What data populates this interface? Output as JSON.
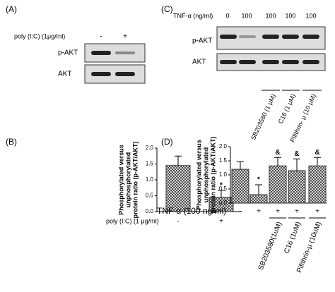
{
  "panel_a": {
    "label": "(A)",
    "treatment": "poly (I:C) (1μg/ml)",
    "lanes": [
      "-",
      "+"
    ],
    "rows": [
      "p-AKT",
      "AKT"
    ]
  },
  "panel_c": {
    "label": "(C)",
    "treatment": "TNF-α (ng/ml)",
    "lanes": [
      "0",
      "100",
      "100",
      "100",
      "100"
    ],
    "rows": [
      "p-AKT",
      "AKT"
    ],
    "inhibitors": [
      "SB203580 (1 μM)",
      "C16 (1 μM)",
      "Pifithrin- μ (10 μM)"
    ]
  },
  "chart_data": [
    {
      "type": "bar",
      "panel": "(B)",
      "ylabel": [
        "Phosphorylated versus",
        "unphosphorylated",
        "protein ratio (p-AKT/AKT)"
      ],
      "xlabel": "poly (I:C) (1 μg/ml)",
      "categories": [
        "-",
        "+"
      ],
      "values": [
        1.45,
        0.45
      ],
      "errors": [
        0.3,
        0.22
      ],
      "markers": [
        null,
        "*"
      ],
      "treatments": [],
      "ylim": [
        0,
        2
      ],
      "yticks": [
        {
          "value": 0,
          "label": "0.0"
        },
        {
          "value": 0.5,
          "label": "0.5"
        },
        {
          "value": 1,
          "label": "1.0"
        },
        {
          "value": 1.5,
          "label": "1.5"
        },
        {
          "value": 2,
          "label": "2.0"
        }
      ],
      "color": "#333333"
    },
    {
      "type": "bar",
      "panel": "(D)",
      "ylabel": [
        "Phosphorylated versus",
        "unphosphorylated",
        "protein ratio (p-AKT/AKT)"
      ],
      "xlabel": "TNF-α (100 ng/ml)",
      "categories": [
        "-",
        "+",
        "+",
        "+",
        "+"
      ],
      "values": [
        1.2,
        0.3,
        1.32,
        1.15,
        1.32
      ],
      "errors": [
        0.27,
        0.35,
        0.3,
        0.42,
        0.3
      ],
      "markers": [
        null,
        "*",
        "&",
        "&",
        "&"
      ],
      "treatments": [
        "SB203580(1uM)",
        "C16 (1uM)",
        "Pifithrin-μ (10uM)"
      ],
      "ylim": [
        0,
        2
      ],
      "yticks": [
        {
          "value": 0,
          "label": "0.0"
        },
        {
          "value": 0.5,
          "label": "0.5"
        },
        {
          "value": 1,
          "label": "1.0"
        },
        {
          "value": 1.5,
          "label": "1.5"
        },
        {
          "value": 2,
          "label": "2.0"
        }
      ],
      "color": "#333333"
    }
  ]
}
